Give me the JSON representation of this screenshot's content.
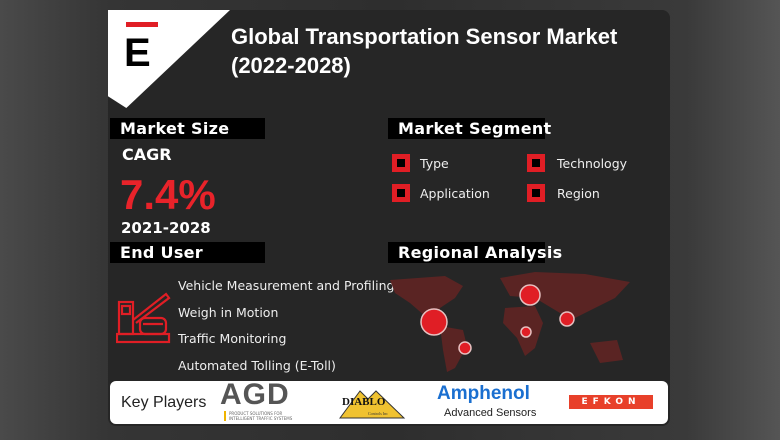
{
  "title": "Global Transportation Sensor Market (2022-2028)",
  "logo": {
    "letter": "E"
  },
  "market_size": {
    "header": "Market Size",
    "cagr_label": "CAGR",
    "cagr_value": "7.4%",
    "period": "2021-2028"
  },
  "market_segment": {
    "header": "Market Segment",
    "items": [
      "Type",
      "Technology",
      "Application",
      "Region"
    ]
  },
  "end_user": {
    "header": "End User",
    "icon": "toll-booth-icon",
    "items": [
      "Vehicle Measurement and Profiling",
      "Weigh in Motion",
      "Traffic Monitoring",
      "Automated Tolling (E-Toll)"
    ]
  },
  "regional": {
    "header": "Regional Analysis",
    "icon": "world-map-icon"
  },
  "key_players": {
    "label": "Key Players",
    "logos": {
      "agd": "AGD",
      "agd_tag1": "PRODUCT SOLUTIONS FOR",
      "agd_tag2": "INTELLIGENT TRAFFIC SYSTEMS",
      "diablo": "DIABLO",
      "diablo_sub": "Controls Inc",
      "amphenol": "Amphenol",
      "amphenol_sub": "Advanced Sensors",
      "efkon": "EFKON"
    }
  },
  "colors": {
    "accent": "#e01e25",
    "card": "#262626"
  }
}
